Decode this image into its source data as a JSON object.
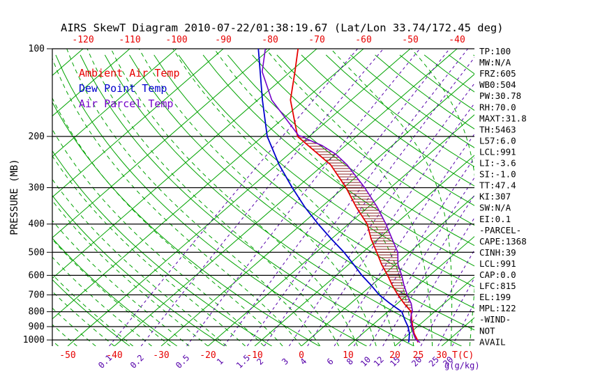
{
  "colors": {
    "background": "#ffffff",
    "grid_green": "#00a300",
    "mixing_purple": "#5500aa",
    "pressure_black": "#000000",
    "axis_red": "#e60000",
    "cape_hatch": "#8b2020"
  },
  "stats_panel": {
    "lines": [
      "TP:100",
      "MW:N/A",
      "FRZ:605",
      "WB0:504",
      "PW:30.78",
      "RH:70.0",
      "MAXT:31.8",
      "TH:5463",
      "L57:6.0",
      "LCL:991",
      "LI:-3.6",
      "SI:-1.0",
      "TT:47.4",
      "KI:307",
      "SW:N/A",
      "EI:0.1",
      "-PARCEL-",
      "CAPE:1368",
      "CINH:39",
      "LCL:991",
      "CAP:0.0",
      "LFC:815",
      "EL:199",
      "MPL:122",
      "-WIND-",
      "NOT",
      "AVAIL"
    ]
  },
  "chart_data": {
    "type": "line",
    "title": "AIRS SkewT Diagram 2010-07-22/01:38:19.67 (Lat/Lon 33.74/172.45 deg)",
    "x_axis": {
      "label": "T(C)",
      "bottom_ticks": [
        -50,
        -40,
        -30,
        -20,
        -10,
        0,
        10,
        20,
        25,
        30
      ],
      "top_ticks": [
        -120,
        -110,
        -100,
        -90,
        -80,
        -70,
        -60,
        -50,
        -40
      ]
    },
    "y_axis": {
      "label": "PRESSURE (MB)",
      "ticks": [
        100,
        200,
        300,
        400,
        500,
        600,
        700,
        800,
        900,
        1000
      ],
      "scale": "log",
      "range": [
        1050,
        100
      ]
    },
    "mixing_ratio": {
      "unit_label": "g(g/kg)",
      "values": [
        0.1,
        0.2,
        0.5,
        1,
        1.5,
        2,
        3,
        4,
        6,
        8,
        10,
        12,
        15,
        20,
        25,
        30
      ]
    },
    "grid": {
      "isotherms_step_c": 10,
      "dry_adiabats_theta_c": {
        "from": -40,
        "to": 200,
        "step": 10
      },
      "moist_adiabats_t0_c": {
        "from": -60,
        "to": 40,
        "step": 4
      }
    },
    "series": [
      {
        "name": "Ambient Air Temp",
        "color": "#e60000",
        "points": [
          [
            1020,
            24
          ],
          [
            1000,
            23.3
          ],
          [
            950,
            21
          ],
          [
            900,
            19
          ],
          [
            850,
            17
          ],
          [
            800,
            15
          ],
          [
            750,
            11.5
          ],
          [
            700,
            8
          ],
          [
            650,
            4.5
          ],
          [
            600,
            1
          ],
          [
            550,
            -3
          ],
          [
            500,
            -7
          ],
          [
            450,
            -11.5
          ],
          [
            400,
            -16
          ],
          [
            350,
            -22.5
          ],
          [
            300,
            -29.5
          ],
          [
            250,
            -38.5
          ],
          [
            200,
            -52.5
          ],
          [
            150,
            -63
          ],
          [
            120,
            -69
          ],
          [
            100,
            -74
          ]
        ]
      },
      {
        "name": "Dew Point Temp",
        "color": "#0000cd",
        "points": [
          [
            1020,
            22
          ],
          [
            1000,
            21.5
          ],
          [
            950,
            20
          ],
          [
            900,
            18
          ],
          [
            850,
            15.5
          ],
          [
            800,
            13
          ],
          [
            750,
            8.5
          ],
          [
            700,
            4
          ],
          [
            650,
            0
          ],
          [
            600,
            -4.5
          ],
          [
            550,
            -9
          ],
          [
            500,
            -14
          ],
          [
            450,
            -20
          ],
          [
            400,
            -26.5
          ],
          [
            350,
            -33.5
          ],
          [
            300,
            -41
          ],
          [
            250,
            -49.5
          ],
          [
            200,
            -59
          ],
          [
            150,
            -69
          ],
          [
            100,
            -82.5
          ]
        ]
      },
      {
        "name": "Air Parcel Temp",
        "color": "#7300c8",
        "points": [
          [
            1020,
            24.5
          ],
          [
            1000,
            23
          ],
          [
            991,
            22.6
          ],
          [
            950,
            20.8
          ],
          [
            900,
            18.8
          ],
          [
            850,
            16.8
          ],
          [
            815,
            15.6
          ],
          [
            800,
            15.3
          ],
          [
            750,
            13
          ],
          [
            700,
            10
          ],
          [
            650,
            7
          ],
          [
            600,
            4
          ],
          [
            550,
            0.5
          ],
          [
            500,
            -2.5
          ],
          [
            450,
            -7
          ],
          [
            400,
            -12
          ],
          [
            350,
            -18
          ],
          [
            300,
            -25.5
          ],
          [
            250,
            -35
          ],
          [
            230,
            -40
          ],
          [
            215,
            -45
          ],
          [
            205,
            -49.5
          ],
          [
            200,
            -51.5
          ],
          [
            199,
            -52.4
          ],
          [
            150,
            -67
          ],
          [
            120,
            -76
          ],
          [
            100,
            -81
          ]
        ]
      }
    ],
    "cape_area": {
      "from_mb": 815,
      "to_mb": 199
    }
  }
}
